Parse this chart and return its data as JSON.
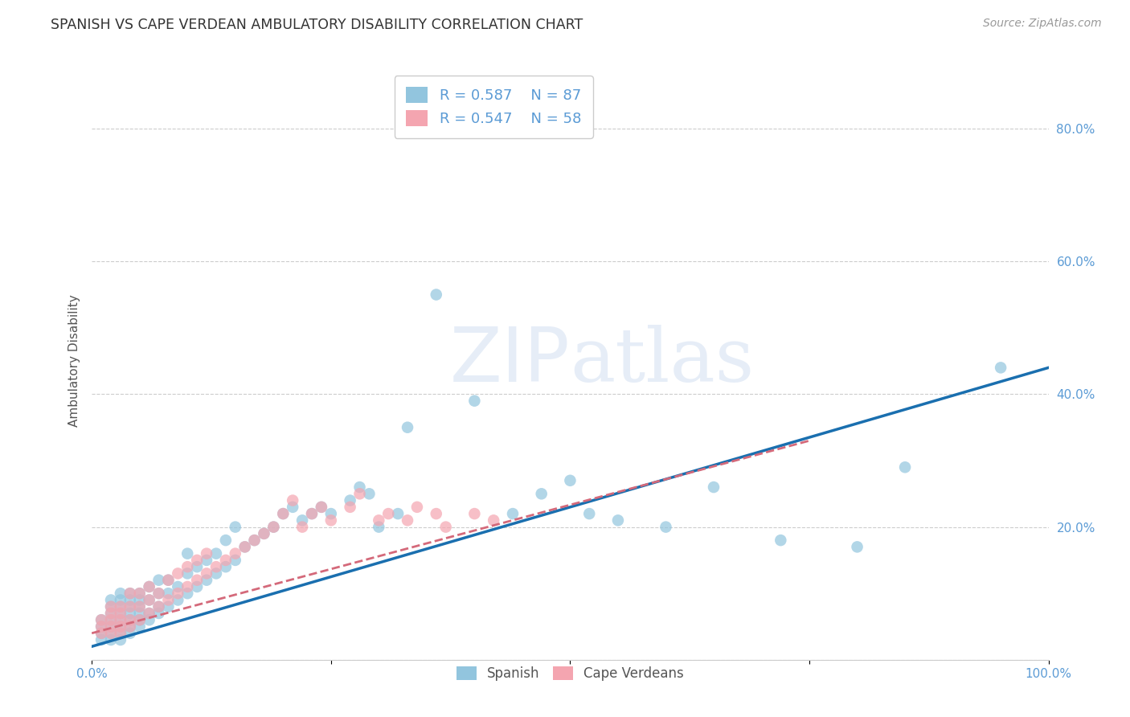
{
  "title": "SPANISH VS CAPE VERDEAN AMBULATORY DISABILITY CORRELATION CHART",
  "source": "Source: ZipAtlas.com",
  "ylabel": "Ambulatory Disability",
  "xlim": [
    0.0,
    1.0
  ],
  "ylim": [
    0.0,
    0.9
  ],
  "ytick_positions": [
    0.0,
    0.2,
    0.4,
    0.6,
    0.8
  ],
  "ytick_labels": [
    "",
    "20.0%",
    "40.0%",
    "60.0%",
    "80.0%"
  ],
  "spanish_color": "#92c5de",
  "cape_color": "#f4a5b0",
  "line_blue": "#1a6faf",
  "line_pink": "#d4697a",
  "legend_r_spanish": "R = 0.587",
  "legend_n_spanish": "N = 87",
  "legend_r_cape": "R = 0.547",
  "legend_n_cape": "N = 58",
  "spanish_x": [
    0.01,
    0.01,
    0.01,
    0.01,
    0.02,
    0.02,
    0.02,
    0.02,
    0.02,
    0.02,
    0.02,
    0.03,
    0.03,
    0.03,
    0.03,
    0.03,
    0.03,
    0.03,
    0.03,
    0.04,
    0.04,
    0.04,
    0.04,
    0.04,
    0.04,
    0.04,
    0.05,
    0.05,
    0.05,
    0.05,
    0.05,
    0.05,
    0.06,
    0.06,
    0.06,
    0.06,
    0.07,
    0.07,
    0.07,
    0.07,
    0.08,
    0.08,
    0.08,
    0.09,
    0.09,
    0.1,
    0.1,
    0.1,
    0.11,
    0.11,
    0.12,
    0.12,
    0.13,
    0.13,
    0.14,
    0.14,
    0.15,
    0.15,
    0.16,
    0.17,
    0.18,
    0.19,
    0.2,
    0.21,
    0.22,
    0.23,
    0.24,
    0.25,
    0.27,
    0.28,
    0.29,
    0.3,
    0.32,
    0.33,
    0.36,
    0.4,
    0.44,
    0.47,
    0.5,
    0.52,
    0.55,
    0.6,
    0.65,
    0.72,
    0.8,
    0.85,
    0.95
  ],
  "spanish_y": [
    0.03,
    0.04,
    0.05,
    0.06,
    0.03,
    0.04,
    0.05,
    0.06,
    0.07,
    0.08,
    0.09,
    0.03,
    0.04,
    0.05,
    0.06,
    0.07,
    0.08,
    0.09,
    0.1,
    0.04,
    0.05,
    0.06,
    0.07,
    0.08,
    0.09,
    0.1,
    0.05,
    0.06,
    0.07,
    0.08,
    0.09,
    0.1,
    0.06,
    0.07,
    0.09,
    0.11,
    0.07,
    0.08,
    0.1,
    0.12,
    0.08,
    0.1,
    0.12,
    0.09,
    0.11,
    0.1,
    0.13,
    0.16,
    0.11,
    0.14,
    0.12,
    0.15,
    0.13,
    0.16,
    0.14,
    0.18,
    0.15,
    0.2,
    0.17,
    0.18,
    0.19,
    0.2,
    0.22,
    0.23,
    0.21,
    0.22,
    0.23,
    0.22,
    0.24,
    0.26,
    0.25,
    0.2,
    0.22,
    0.35,
    0.55,
    0.39,
    0.22,
    0.25,
    0.27,
    0.22,
    0.21,
    0.2,
    0.26,
    0.18,
    0.17,
    0.29,
    0.44
  ],
  "cape_x": [
    0.01,
    0.01,
    0.01,
    0.02,
    0.02,
    0.02,
    0.02,
    0.02,
    0.03,
    0.03,
    0.03,
    0.03,
    0.03,
    0.04,
    0.04,
    0.04,
    0.04,
    0.05,
    0.05,
    0.05,
    0.06,
    0.06,
    0.06,
    0.07,
    0.07,
    0.08,
    0.08,
    0.09,
    0.09,
    0.1,
    0.1,
    0.11,
    0.11,
    0.12,
    0.12,
    0.13,
    0.14,
    0.15,
    0.16,
    0.17,
    0.18,
    0.19,
    0.2,
    0.21,
    0.22,
    0.23,
    0.24,
    0.25,
    0.27,
    0.28,
    0.3,
    0.31,
    0.33,
    0.34,
    0.36,
    0.37,
    0.4,
    0.42
  ],
  "cape_y": [
    0.04,
    0.05,
    0.06,
    0.04,
    0.05,
    0.06,
    0.07,
    0.08,
    0.04,
    0.05,
    0.06,
    0.07,
    0.08,
    0.05,
    0.06,
    0.08,
    0.1,
    0.06,
    0.08,
    0.1,
    0.07,
    0.09,
    0.11,
    0.08,
    0.1,
    0.09,
    0.12,
    0.1,
    0.13,
    0.11,
    0.14,
    0.12,
    0.15,
    0.13,
    0.16,
    0.14,
    0.15,
    0.16,
    0.17,
    0.18,
    0.19,
    0.2,
    0.22,
    0.24,
    0.2,
    0.22,
    0.23,
    0.21,
    0.23,
    0.25,
    0.21,
    0.22,
    0.21,
    0.23,
    0.22,
    0.2,
    0.22,
    0.21
  ],
  "grid_color": "#cccccc",
  "background_color": "#ffffff",
  "title_color": "#333333",
  "axis_label_color": "#555555",
  "tick_color": "#5b9bd5",
  "title_fontsize": 12.5,
  "label_fontsize": 11,
  "tick_fontsize": 11,
  "source_fontsize": 10,
  "blue_line_x0": 0.0,
  "blue_line_y0": 0.02,
  "blue_line_x1": 1.0,
  "blue_line_y1": 0.44,
  "pink_line_x0": 0.0,
  "pink_line_y0": 0.04,
  "pink_line_x1": 0.75,
  "pink_line_y1": 0.33
}
